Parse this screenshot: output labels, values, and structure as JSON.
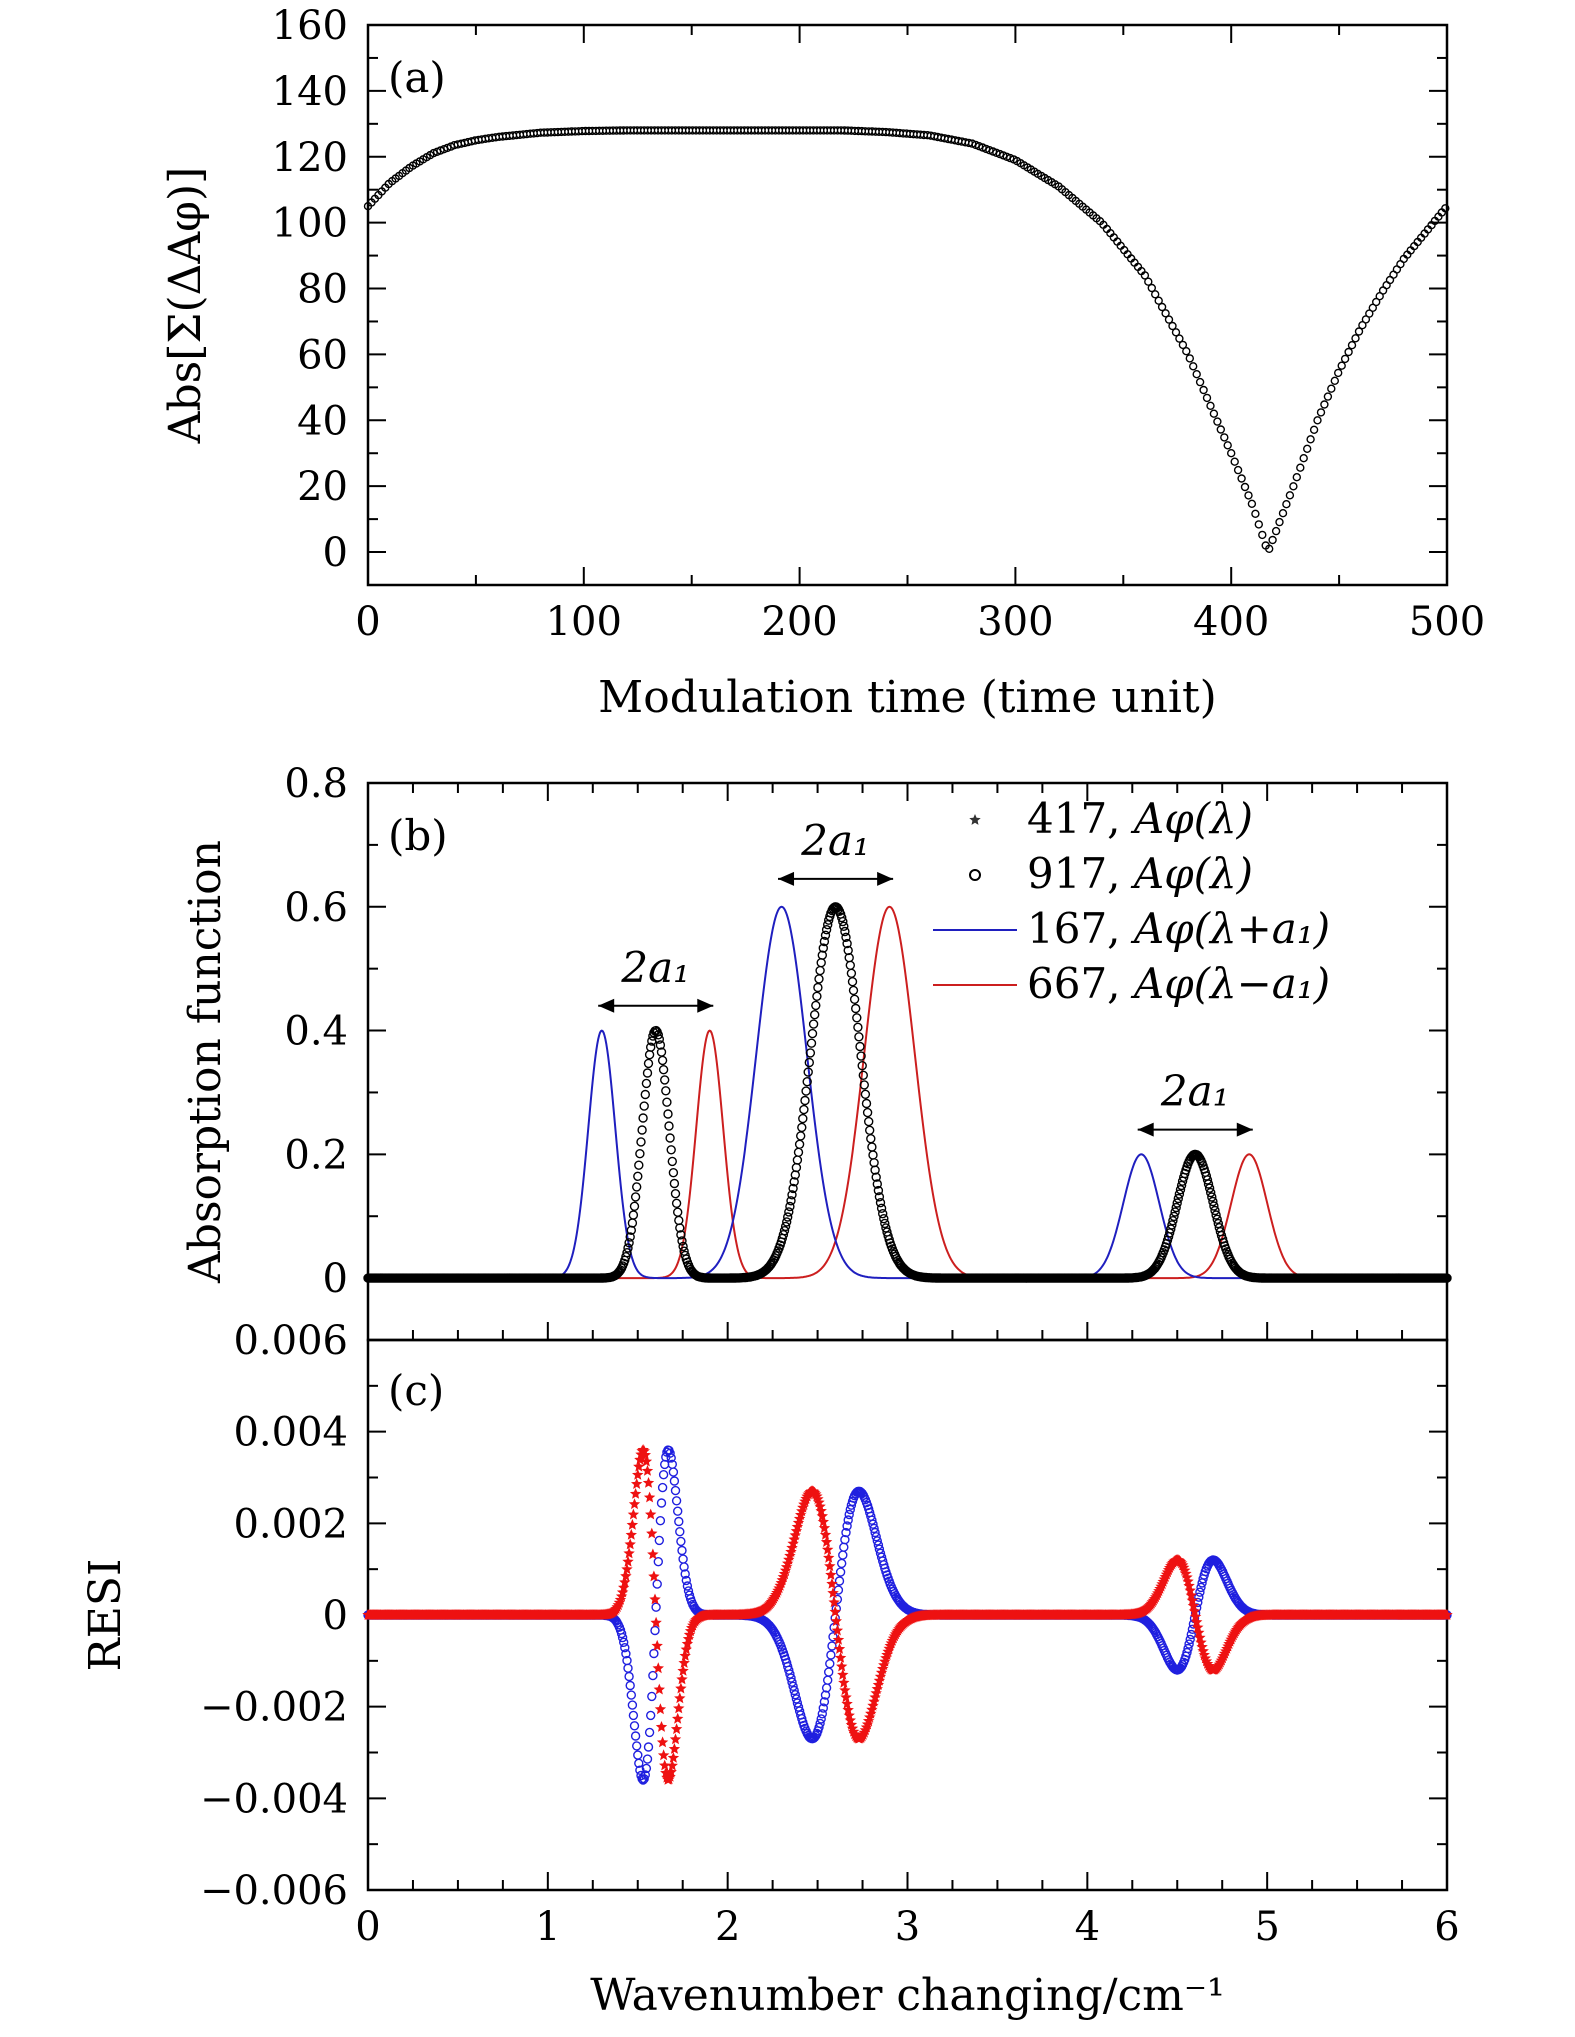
{
  "chart_data": [
    {
      "panel": "(a)",
      "type": "scatter",
      "xlabel": "Modulation time (time unit)",
      "ylabel": "Abs[Σ(ΔAφ)]",
      "xlim": [
        0,
        500
      ],
      "ylim": [
        -10,
        160
      ],
      "xticks": [
        0,
        100,
        200,
        300,
        400,
        500
      ],
      "yticks": [
        0,
        20,
        40,
        60,
        80,
        100,
        120,
        140,
        160
      ],
      "marker": "open-circle",
      "color": "#000000",
      "series": [
        {
          "x": [
            0,
            10,
            20,
            30,
            40,
            50,
            60,
            80,
            100,
            120,
            140,
            160,
            180,
            200,
            220,
            240,
            260,
            280,
            300,
            320,
            340,
            360,
            380,
            390,
            400,
            410,
            417,
            420,
            430,
            440,
            450,
            460,
            470,
            480,
            490,
            500
          ],
          "values": [
            105,
            112,
            117,
            121,
            123.5,
            125,
            126,
            127.3,
            127.8,
            128,
            128,
            128,
            128,
            128,
            128,
            127.5,
            126.5,
            124,
            119,
            111,
            100,
            84,
            60,
            45,
            30,
            14,
            0,
            5,
            22,
            40,
            55,
            68,
            79,
            89,
            97,
            105
          ]
        }
      ]
    },
    {
      "panel": "(b)",
      "type": "line",
      "ylabel": "Absorption function",
      "xlim": [
        0,
        6
      ],
      "ylim": [
        -0.1,
        0.8
      ],
      "xticks": [
        0,
        1,
        2,
        3,
        4,
        5,
        6
      ],
      "yticks": [
        0,
        0.2,
        0.4,
        0.6,
        0.8
      ],
      "ytick_labels": [
        "0",
        "0.2",
        "0.4",
        "0.6",
        "0.8"
      ],
      "peaks_417_917": [
        {
          "center": 1.6,
          "amplitude": 0.4,
          "width": 0.075
        },
        {
          "center": 2.6,
          "amplitude": 0.6,
          "width": 0.14
        },
        {
          "center": 4.6,
          "amplitude": 0.2,
          "width": 0.1
        }
      ],
      "a1": 0.3,
      "series": [
        {
          "name": "417, Aφ(λ)",
          "label_num": "417, ",
          "label_fn": "Aφ(λ)",
          "marker": "star",
          "color": "#333333",
          "shift": 0
        },
        {
          "name": "917, Aφ(λ)",
          "label_num": "917, ",
          "label_fn": "Aφ(λ)",
          "marker": "open-circle",
          "color": "#000000",
          "shift": 0
        },
        {
          "name": "167, Aφ(λ+a1)",
          "label_num": "167, ",
          "label_fn": "Aφ(λ+a₁)",
          "marker": "line",
          "color": "#1f1fbf",
          "shift": -0.3
        },
        {
          "name": "667, Aφ(λ−a1)",
          "label_num": "667, ",
          "label_fn": "Aφ(λ−a₁)",
          "marker": "line",
          "color": "#cc1f1f",
          "shift": 0.3
        }
      ],
      "annotations": [
        "2a₁",
        "2a₁",
        "2a₁"
      ],
      "legend_placement": "top-right"
    },
    {
      "panel": "(c)",
      "type": "scatter",
      "ylabel": "RESI",
      "xlabel": "Wavenumber changing/cm⁻¹",
      "xlim": [
        0,
        6
      ],
      "ylim": [
        -0.006,
        0.006
      ],
      "xticks": [
        0,
        1,
        2,
        3,
        4,
        5,
        6
      ],
      "yticks": [
        -0.006,
        -0.004,
        -0.002,
        0,
        0.002,
        0.004,
        0.006
      ],
      "ytick_labels": [
        "−0.006",
        "−0.004",
        "−0.002",
        "0",
        "0.002",
        "0.004",
        "0.006"
      ],
      "peaks": [
        {
          "center": 1.6,
          "amplitude": 0.0036,
          "width": 0.07
        },
        {
          "center": 2.6,
          "amplitude": 0.0027,
          "width": 0.13
        },
        {
          "center": 4.6,
          "amplitude": 0.0012,
          "width": 0.1
        }
      ],
      "series": [
        {
          "name": "blue",
          "marker": "open-circle",
          "color": "#1f1fdf",
          "sign": -1
        },
        {
          "name": "red",
          "marker": "star",
          "color": "#ee1111",
          "sign": 1
        }
      ]
    }
  ]
}
